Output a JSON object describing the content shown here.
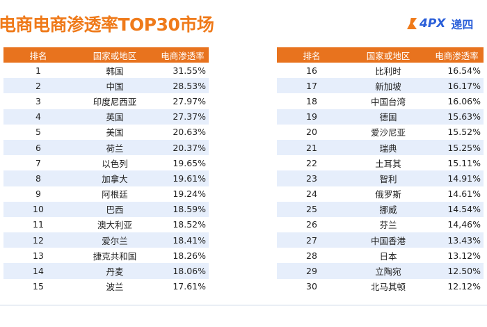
{
  "title": "电商电商渗透率TOP30市场",
  "logo": {
    "brand": "4PX",
    "cn": "递四"
  },
  "colors": {
    "accent": "#e8731e",
    "stripe": "#e6eefb",
    "brand": "#2b5fd9"
  },
  "headers": {
    "rank": "排名",
    "country": "国家或地区",
    "rate": "电商渗透率"
  },
  "left": [
    {
      "rank": "1",
      "country": "韩国",
      "rate": "31.55%"
    },
    {
      "rank": "2",
      "country": "中国",
      "rate": "28.53%"
    },
    {
      "rank": "3",
      "country": "印度尼西亚",
      "rate": "27.97%"
    },
    {
      "rank": "4",
      "country": "英国",
      "rate": "27.37%"
    },
    {
      "rank": "5",
      "country": "美国",
      "rate": "20.63%"
    },
    {
      "rank": "6",
      "country": "荷兰",
      "rate": "20.37%"
    },
    {
      "rank": "7",
      "country": "以色列",
      "rate": "19.65%"
    },
    {
      "rank": "8",
      "country": "加拿大",
      "rate": "19.61%"
    },
    {
      "rank": "9",
      "country": "阿根廷",
      "rate": "19.24%"
    },
    {
      "rank": "10",
      "country": "巴西",
      "rate": "18.59%"
    },
    {
      "rank": "11",
      "country": "澳大利亚",
      "rate": "18.52%"
    },
    {
      "rank": "12",
      "country": "爱尔兰",
      "rate": "18.41%"
    },
    {
      "rank": "13",
      "country": "捷克共和国",
      "rate": "18.26%"
    },
    {
      "rank": "14",
      "country": "丹麦",
      "rate": "18.06%"
    },
    {
      "rank": "15",
      "country": "波兰",
      "rate": "17.61%"
    }
  ],
  "right": [
    {
      "rank": "16",
      "country": "比利时",
      "rate": "16.54%"
    },
    {
      "rank": "17",
      "country": "新加坡",
      "rate": "16.17%"
    },
    {
      "rank": "18",
      "country": "中国台湾",
      "rate": "16.06%"
    },
    {
      "rank": "19",
      "country": "德国",
      "rate": "15.63%"
    },
    {
      "rank": "20",
      "country": "爱沙尼亚",
      "rate": "15.52%"
    },
    {
      "rank": "21",
      "country": "瑞典",
      "rate": "15.25%"
    },
    {
      "rank": "22",
      "country": "土耳其",
      "rate": "15.11%"
    },
    {
      "rank": "23",
      "country": "智利",
      "rate": "14.91%"
    },
    {
      "rank": "24",
      "country": "俄罗斯",
      "rate": "14.61%"
    },
    {
      "rank": "25",
      "country": "挪威",
      "rate": "14.54%"
    },
    {
      "rank": "26",
      "country": "芬兰",
      "rate": "14,46%"
    },
    {
      "rank": "27",
      "country": "中国香港",
      "rate": "13.43%"
    },
    {
      "rank": "28",
      "country": "日本",
      "rate": "13.12%"
    },
    {
      "rank": "29",
      "country": "立陶宛",
      "rate": "12.50%"
    },
    {
      "rank": "30",
      "country": "北马其顿",
      "rate": "12.12%"
    }
  ]
}
